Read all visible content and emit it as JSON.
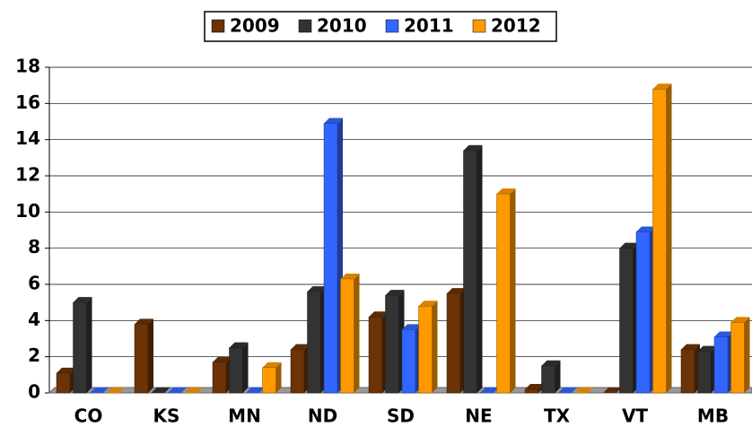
{
  "chart_data": {
    "type": "bar",
    "categories": [
      "CO",
      "KS",
      "MN",
      "ND",
      "SD",
      "NE",
      "TX",
      "VT",
      "MB"
    ],
    "series": [
      {
        "name": "2009",
        "color": "#6b3306",
        "values": [
          1.1,
          3.8,
          1.7,
          2.4,
          4.2,
          5.5,
          0.2,
          0,
          2.4
        ]
      },
      {
        "name": "2010",
        "color": "#333333",
        "values": [
          5.0,
          0,
          2.5,
          5.6,
          5.4,
          13.4,
          1.5,
          8.0,
          2.3
        ]
      },
      {
        "name": "2011",
        "color": "#3366ff",
        "values": [
          0,
          0,
          0,
          14.9,
          3.5,
          0,
          0,
          8.9,
          3.1
        ]
      },
      {
        "name": "2012",
        "color": "#ff9900",
        "values": [
          0,
          0,
          1.4,
          6.3,
          4.8,
          11.0,
          0,
          16.8,
          3.9
        ]
      }
    ],
    "ylim": [
      0,
      18
    ],
    "yticks": [
      0,
      2,
      4,
      6,
      8,
      10,
      12,
      14,
      16,
      18
    ],
    "grid": true,
    "legend": "top"
  }
}
